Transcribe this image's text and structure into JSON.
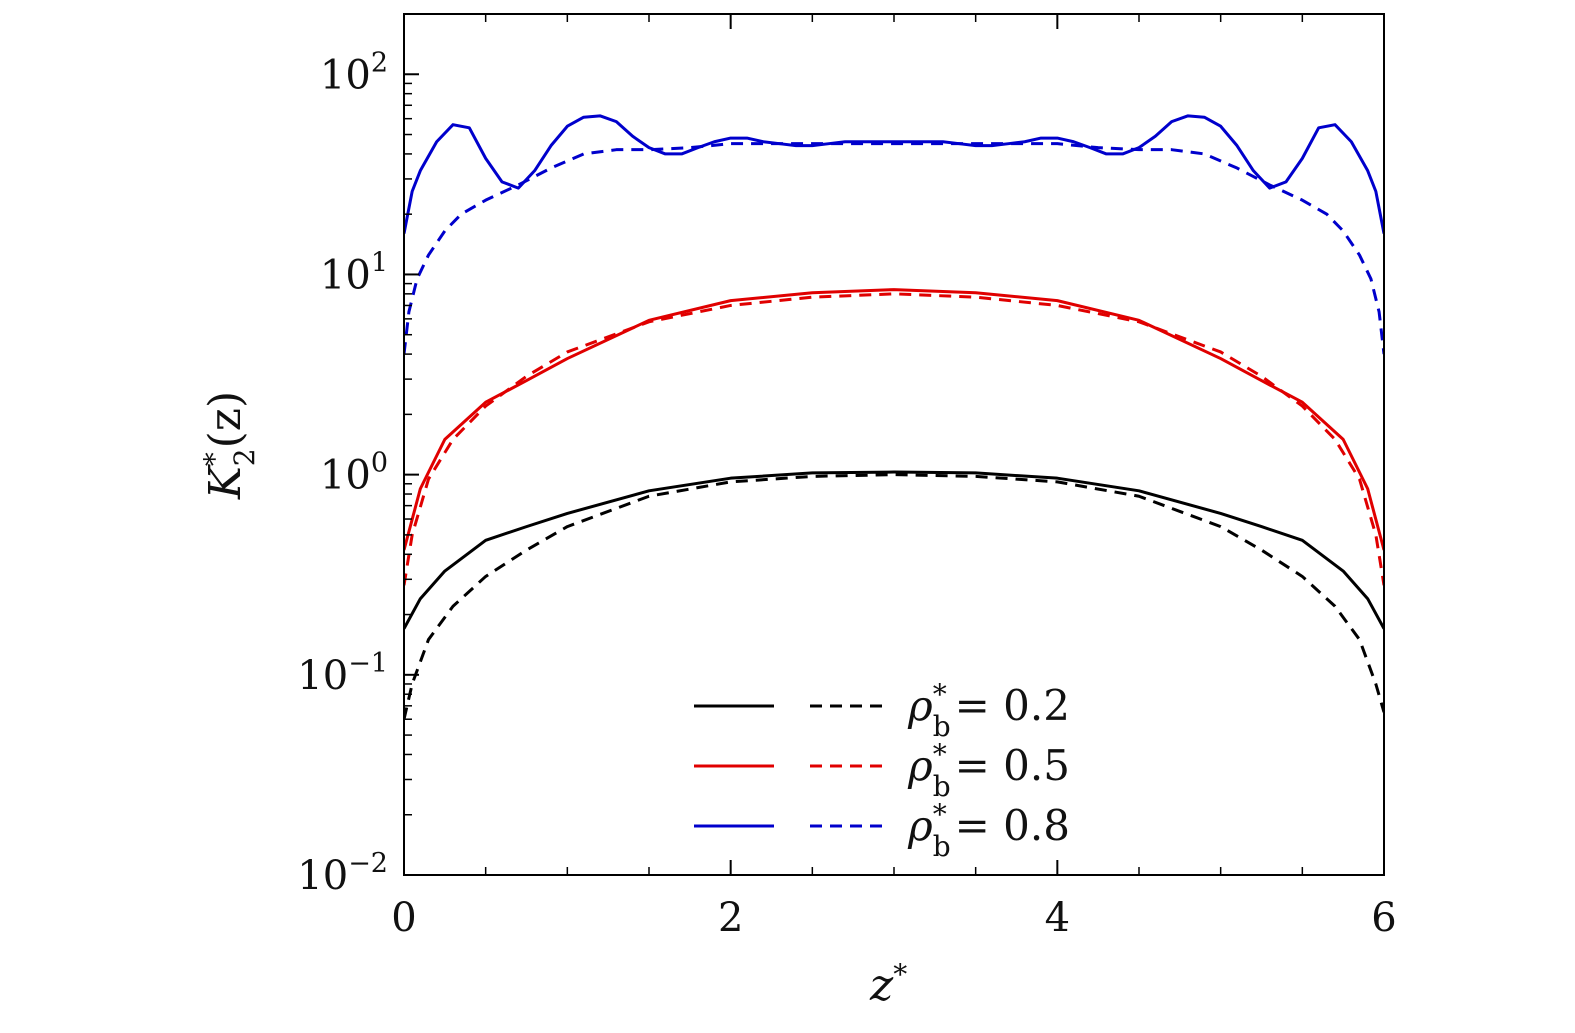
{
  "chart_data": {
    "type": "line",
    "xlabel": "z",
    "xlabel_sup": "*",
    "ylabel": {
      "symbol": "K",
      "sup": "*",
      "sub": "2",
      "arg": "(z)"
    },
    "xlim": [
      0,
      6
    ],
    "ylim": [
      0.01,
      200
    ],
    "yscale": "log",
    "xticks": [
      {
        "value": 0,
        "label": "0"
      },
      {
        "value": 2,
        "label": "2"
      },
      {
        "value": 4,
        "label": "4"
      },
      {
        "value": 6,
        "label": "6"
      }
    ],
    "yticks": [
      {
        "value": 0.01,
        "base": "10",
        "exp": "−2"
      },
      {
        "value": 0.1,
        "base": "10",
        "exp": "−1"
      },
      {
        "value": 1,
        "base": "10",
        "exp": "0"
      },
      {
        "value": 10,
        "base": "10",
        "exp": "1"
      },
      {
        "value": 100,
        "base": "10",
        "exp": "2"
      }
    ],
    "legend": {
      "position": "bottom-center",
      "entries": [
        {
          "symbol": "ρ",
          "sup": "*",
          "sub": "b",
          "eq": "= 0.2",
          "color": "#000000"
        },
        {
          "symbol": "ρ",
          "sup": "*",
          "sub": "b",
          "eq": "= 0.5",
          "color": "#e00000"
        },
        {
          "symbol": "ρ",
          "sup": "*",
          "sub": "b",
          "eq": "= 0.8",
          "color": "#0000cc"
        }
      ]
    },
    "series": [
      {
        "style": "solid",
        "color": "#000000",
        "x": [
          0,
          0.1,
          0.25,
          0.5,
          0.75,
          1.0,
          1.5,
          2.0,
          2.5,
          3.0,
          3.5,
          4.0,
          4.5,
          5.0,
          5.25,
          5.5,
          5.75,
          5.9,
          6.0
        ],
        "y": [
          0.17,
          0.24,
          0.33,
          0.47,
          0.55,
          0.64,
          0.83,
          0.96,
          1.02,
          1.03,
          1.02,
          0.96,
          0.83,
          0.64,
          0.55,
          0.47,
          0.33,
          0.24,
          0.17
        ]
      },
      {
        "style": "dashed",
        "color": "#000000",
        "x": [
          0,
          0.05,
          0.15,
          0.3,
          0.5,
          0.75,
          1.0,
          1.5,
          2.0,
          2.5,
          3.0,
          3.5,
          4.0,
          4.5,
          5.0,
          5.25,
          5.5,
          5.7,
          5.85,
          5.95,
          6.0
        ],
        "y": [
          0.06,
          0.09,
          0.15,
          0.22,
          0.31,
          0.42,
          0.55,
          0.78,
          0.92,
          0.98,
          1.0,
          0.98,
          0.92,
          0.78,
          0.55,
          0.42,
          0.31,
          0.22,
          0.15,
          0.09,
          0.065
        ]
      },
      {
        "style": "solid",
        "color": "#e00000",
        "x": [
          0,
          0.1,
          0.25,
          0.5,
          0.75,
          1.0,
          1.5,
          2.0,
          2.5,
          3.0,
          3.5,
          4.0,
          4.5,
          5.0,
          5.25,
          5.5,
          5.75,
          5.9,
          6.0
        ],
        "y": [
          0.42,
          0.85,
          1.5,
          2.3,
          2.95,
          3.8,
          5.9,
          7.4,
          8.1,
          8.4,
          8.1,
          7.4,
          5.9,
          3.8,
          2.95,
          2.3,
          1.5,
          0.85,
          0.42
        ]
      },
      {
        "style": "dashed",
        "color": "#e00000",
        "x": [
          0,
          0.05,
          0.15,
          0.3,
          0.5,
          0.75,
          1.0,
          1.5,
          2.0,
          2.5,
          3.0,
          3.5,
          4.0,
          4.5,
          5.0,
          5.25,
          5.5,
          5.7,
          5.85,
          5.95,
          6.0
        ],
        "y": [
          0.28,
          0.5,
          0.95,
          1.5,
          2.2,
          3.1,
          4.1,
          5.8,
          7.0,
          7.7,
          8.0,
          7.7,
          7.0,
          5.8,
          4.1,
          3.1,
          2.2,
          1.5,
          0.95,
          0.5,
          0.28
        ]
      },
      {
        "style": "solid",
        "color": "#0000cc",
        "x": [
          0,
          0.05,
          0.1,
          0.2,
          0.3,
          0.4,
          0.5,
          0.6,
          0.7,
          0.8,
          0.9,
          1.0,
          1.1,
          1.2,
          1.3,
          1.4,
          1.5,
          1.6,
          1.7,
          1.8,
          1.9,
          2.0,
          2.1,
          2.2,
          2.3,
          2.4,
          2.5,
          2.6,
          2.7,
          2.8,
          2.9,
          3.0,
          3.1,
          3.2,
          3.3,
          3.4,
          3.5,
          3.6,
          3.7,
          3.8,
          3.9,
          4.0,
          4.1,
          4.2,
          4.3,
          4.4,
          4.5,
          4.6,
          4.7,
          4.8,
          4.9,
          5.0,
          5.1,
          5.2,
          5.3,
          5.4,
          5.5,
          5.6,
          5.7,
          5.8,
          5.9,
          5.95,
          6.0
        ],
        "y": [
          16,
          26,
          33,
          46,
          56,
          54,
          38,
          29,
          27,
          33,
          44,
          55,
          61,
          62,
          58,
          49,
          43,
          40,
          40,
          43,
          46,
          48,
          48,
          46,
          45,
          44,
          44,
          45,
          46,
          46,
          46,
          46,
          46,
          46,
          46,
          45,
          44,
          44,
          45,
          46,
          48,
          48,
          46,
          43,
          40,
          40,
          43,
          49,
          58,
          62,
          61,
          55,
          44,
          33,
          27,
          29,
          38,
          54,
          56,
          46,
          33,
          26,
          16
        ]
      },
      {
        "style": "dashed",
        "color": "#0000cc",
        "x": [
          0,
          0.03,
          0.08,
          0.15,
          0.25,
          0.35,
          0.5,
          0.7,
          0.9,
          1.1,
          1.3,
          1.5,
          1.75,
          2.0,
          2.5,
          3.0,
          3.5,
          4.0,
          4.25,
          4.5,
          4.7,
          4.9,
          5.1,
          5.3,
          5.5,
          5.65,
          5.75,
          5.85,
          5.92,
          5.97,
          6.0
        ],
        "y": [
          4.0,
          6.5,
          9.5,
          12.5,
          16.5,
          20,
          23.5,
          28,
          34,
          40,
          42,
          42,
          43,
          45,
          45,
          45,
          45,
          45,
          43,
          42,
          42,
          40,
          34,
          28,
          23.5,
          20,
          16.5,
          12.5,
          9.5,
          6.5,
          4.0
        ]
      }
    ]
  }
}
